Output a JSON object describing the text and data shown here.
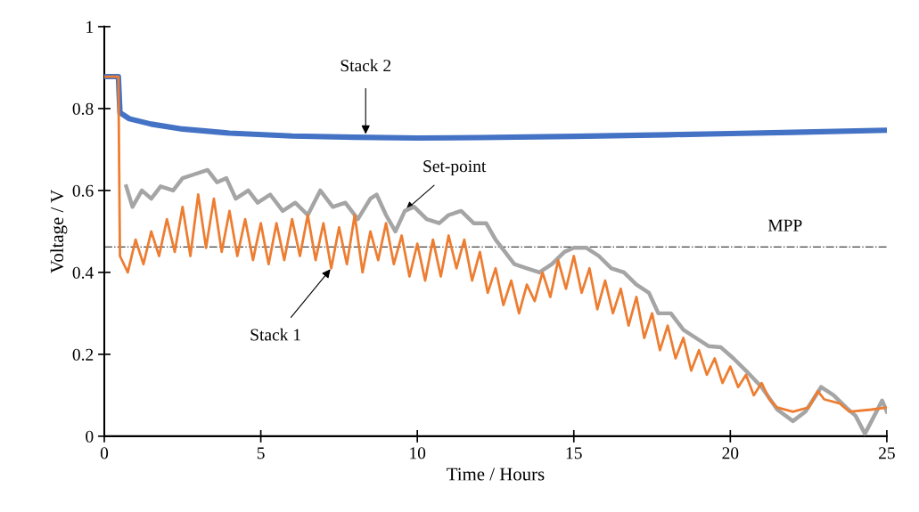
{
  "chart_data": {
    "type": "line",
    "xlabel": "Time / Hours",
    "ylabel": "Voltage / V",
    "xlim": [
      0,
      25
    ],
    "xticks": [
      0,
      5,
      10,
      15,
      20,
      25
    ],
    "ylim": [
      0,
      1
    ],
    "yticks": [
      0,
      0.2,
      0.4,
      0.6,
      0.8,
      1
    ],
    "grid": false,
    "marker": "none",
    "line_style": "solid",
    "series": [
      {
        "color": "#ed7d31",
        "x": [
          0,
          0.45,
          0.5,
          0.75,
          1.0,
          1.25,
          1.5,
          1.75,
          2.0,
          2.25,
          2.5,
          2.75,
          3.0,
          3.25,
          3.5,
          3.75,
          4.0,
          4.25,
          4.5,
          4.75,
          5.0,
          5.25,
          5.5,
          5.75,
          6.0,
          6.25,
          6.5,
          6.75,
          7.0,
          7.25,
          7.5,
          7.75,
          8.0,
          8.25,
          8.5,
          8.75,
          9.0,
          9.25,
          9.5,
          9.75,
          10.0,
          10.25,
          10.5,
          10.75,
          11.0,
          11.25,
          11.5,
          11.75,
          12.0,
          12.25,
          12.5,
          12.75,
          13.0,
          13.25,
          13.5,
          13.75,
          14.0,
          14.25,
          14.5,
          14.75,
          15.0,
          15.25,
          15.5,
          15.75,
          16.0,
          16.25,
          16.5,
          16.75,
          17.0,
          17.25,
          17.5,
          17.75,
          18.0,
          18.25,
          18.5,
          18.75,
          19.0,
          19.25,
          19.5,
          19.75,
          20.0,
          20.25,
          20.5,
          20.75,
          21.0,
          21.25,
          21.5,
          22.0,
          22.5,
          22.8,
          23.0,
          23.5,
          23.8,
          24.5,
          25
        ],
        "values": [
          0.878,
          0.878,
          0.44,
          0.4,
          0.48,
          0.42,
          0.5,
          0.44,
          0.53,
          0.45,
          0.56,
          0.44,
          0.59,
          0.46,
          0.58,
          0.45,
          0.55,
          0.44,
          0.53,
          0.43,
          0.52,
          0.42,
          0.52,
          0.43,
          0.53,
          0.44,
          0.54,
          0.43,
          0.52,
          0.41,
          0.51,
          0.42,
          0.54,
          0.4,
          0.5,
          0.43,
          0.52,
          0.42,
          0.49,
          0.39,
          0.47,
          0.38,
          0.48,
          0.39,
          0.49,
          0.41,
          0.48,
          0.38,
          0.45,
          0.35,
          0.41,
          0.32,
          0.38,
          0.3,
          0.37,
          0.33,
          0.4,
          0.34,
          0.43,
          0.36,
          0.44,
          0.35,
          0.41,
          0.31,
          0.38,
          0.3,
          0.36,
          0.27,
          0.34,
          0.24,
          0.3,
          0.21,
          0.27,
          0.19,
          0.24,
          0.16,
          0.21,
          0.15,
          0.19,
          0.13,
          0.17,
          0.12,
          0.15,
          0.1,
          0.13,
          0.09,
          0.07,
          0.06,
          0.07,
          0.11,
          0.09,
          0.08,
          0.06,
          0.065,
          0.07
        ]
      },
      {
        "color": "#a5a5a5",
        "x": [
          0.7,
          0.9,
          1.2,
          1.5,
          1.8,
          2.2,
          2.5,
          2.9,
          3.3,
          3.6,
          3.9,
          4.2,
          4.6,
          4.9,
          5.3,
          5.7,
          6.1,
          6.5,
          6.9,
          7.3,
          7.7,
          8.1,
          8.5,
          8.7,
          9.0,
          9.3,
          9.6,
          9.9,
          10.3,
          10.7,
          11.0,
          11.4,
          11.8,
          12.2,
          12.5,
          12.8,
          13.1,
          13.5,
          13.9,
          14.3,
          14.7,
          15.0,
          15.4,
          15.8,
          16.2,
          16.6,
          17.0,
          17.4,
          17.7,
          18.1,
          18.5,
          18.9,
          19.3,
          19.7,
          20.1,
          20.5,
          21.0,
          21.5,
          22.0,
          22.4,
          22.9,
          23.3,
          23.7,
          24.0,
          24.3,
          24.6,
          24.85,
          25
        ],
        "values": [
          0.61,
          0.56,
          0.6,
          0.58,
          0.61,
          0.6,
          0.63,
          0.64,
          0.65,
          0.62,
          0.63,
          0.58,
          0.6,
          0.57,
          0.59,
          0.55,
          0.57,
          0.54,
          0.6,
          0.56,
          0.57,
          0.53,
          0.58,
          0.59,
          0.54,
          0.5,
          0.55,
          0.56,
          0.53,
          0.52,
          0.54,
          0.55,
          0.52,
          0.52,
          0.48,
          0.45,
          0.42,
          0.41,
          0.4,
          0.42,
          0.45,
          0.46,
          0.46,
          0.44,
          0.41,
          0.4,
          0.37,
          0.35,
          0.3,
          0.3,
          0.26,
          0.24,
          0.22,
          0.217,
          0.19,
          0.16,
          0.12,
          0.065,
          0.037,
          0.06,
          0.12,
          0.1,
          0.07,
          0.05,
          0.006,
          0.05,
          0.087,
          0.06
        ]
      },
      {
        "color": "#4472c4",
        "x": [
          0,
          0.45,
          0.5,
          0.8,
          1.5,
          2.5,
          4,
          6,
          8,
          10,
          12,
          15,
          18,
          20,
          22,
          25
        ],
        "values": [
          0.878,
          0.878,
          0.79,
          0.775,
          0.762,
          0.75,
          0.74,
          0.733,
          0.73,
          0.728,
          0.729,
          0.732,
          0.736,
          0.739,
          0.742,
          0.747
        ]
      }
    ],
    "ref_lines": [
      {
        "axis": "y",
        "value": 0.462,
        "label": "MPP",
        "color": "#404040",
        "line_style": "dashdot"
      }
    ],
    "annotations": [
      {
        "text": "Stack 2",
        "x": 8.35,
        "y": 0.735
      },
      {
        "text": "Set-point",
        "x": 9.6,
        "y": 0.55
      },
      {
        "text": "Stack 1",
        "x": 7.25,
        "y": 0.41
      }
    ]
  }
}
